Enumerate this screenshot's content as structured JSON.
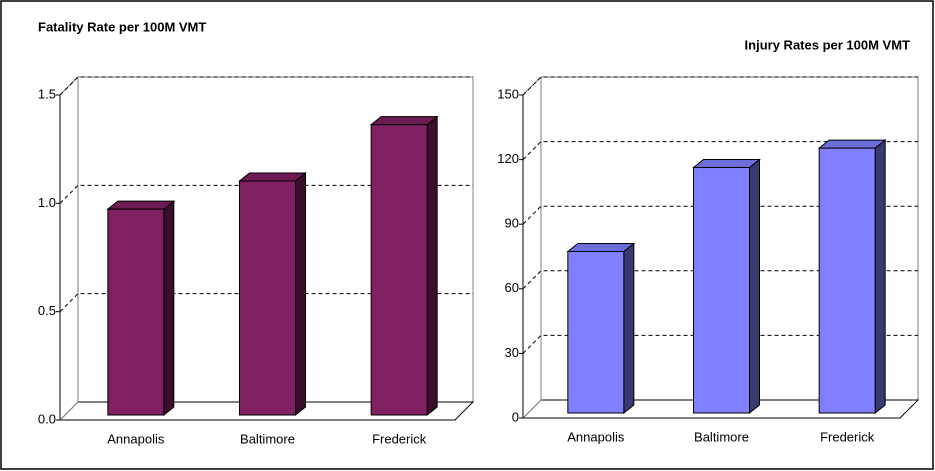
{
  "chart_data": [
    {
      "type": "bar3d",
      "title": "Fatality Rate per 100M VMT",
      "categories": [
        "Annapolis",
        "Baltimore",
        "Frederick"
      ],
      "values": [
        0.95,
        1.08,
        1.34
      ],
      "color": "#802060",
      "ylim": [
        0,
        1.5
      ],
      "yticks": [
        {
          "value": 0,
          "label": "0.0"
        },
        0.5,
        {
          "value": 1,
          "label": "1.0"
        },
        1.5
      ],
      "grid": true
    },
    {
      "type": "bar3d",
      "title": "Injury Rates per 100M VMT",
      "categories": [
        "Annapolis",
        "Baltimore",
        "Frederick"
      ],
      "values": [
        75,
        114,
        123
      ],
      "color": "#8080ff",
      "ylim": [
        0,
        150
      ],
      "yticks": [
        0,
        30,
        60,
        90,
        120,
        150
      ],
      "grid": true
    }
  ]
}
